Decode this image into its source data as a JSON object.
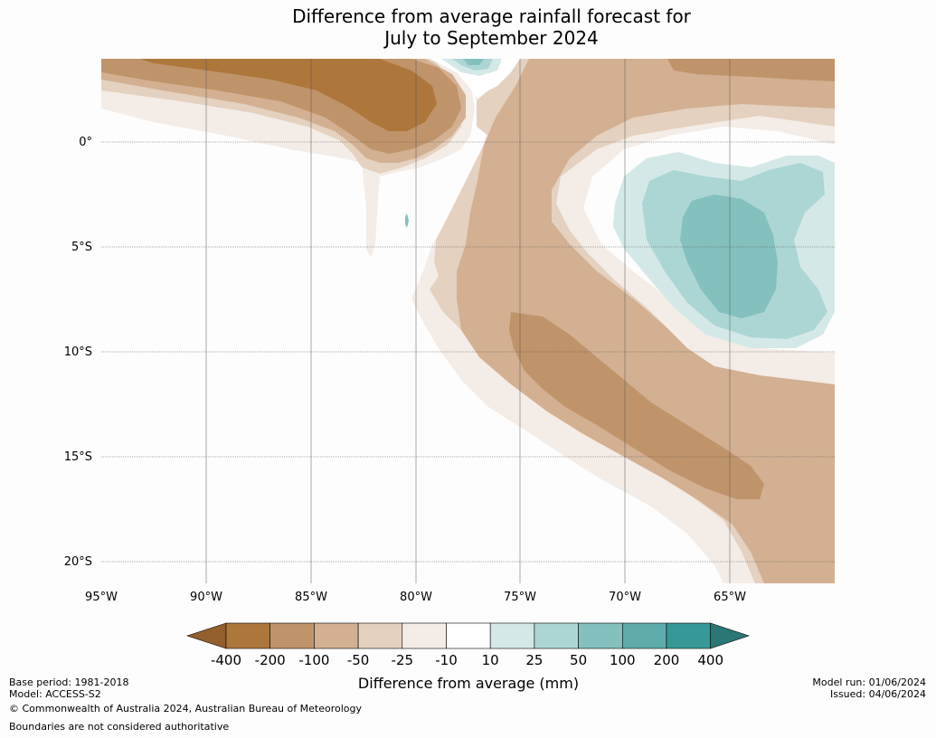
{
  "title": {
    "line1": "Difference from average rainfall forecast for",
    "line2": "July to September 2024"
  },
  "map": {
    "lat_labels": [
      "0°",
      "5°S",
      "10°S",
      "15°S",
      "20°S"
    ],
    "lon_labels": [
      "95°W",
      "90°W",
      "85°W",
      "80°W",
      "75°W",
      "70°W",
      "65°W"
    ]
  },
  "legend": {
    "tick_labels": [
      "-400",
      "-200",
      "-100",
      "-50",
      "-25",
      "-10",
      "10",
      "25",
      "50",
      "100",
      "200",
      "400"
    ],
    "bin_colors": [
      "#ad773c",
      "#c0946a",
      "#d3b092",
      "#e4d1bf",
      "#f4ece6",
      "#ffffff",
      "#d4e9e7",
      "#acd6d4",
      "#84c0be",
      "#5eacab",
      "#369997"
    ],
    "under_color": "#935f2c",
    "over_color": "#2a7775",
    "label": "Difference from average (mm)"
  },
  "footer": {
    "base_period": "Base period: 1981-2018",
    "model": "Model: ACCESS-S2",
    "copyright": "© Commonwealth of Australia 2024, Australian Bureau of Meteorology",
    "boundaries": "Boundaries are not considered authoritative",
    "model_run": "Model run: 01/06/2024",
    "issued": "Issued: 04/06/2024"
  }
}
